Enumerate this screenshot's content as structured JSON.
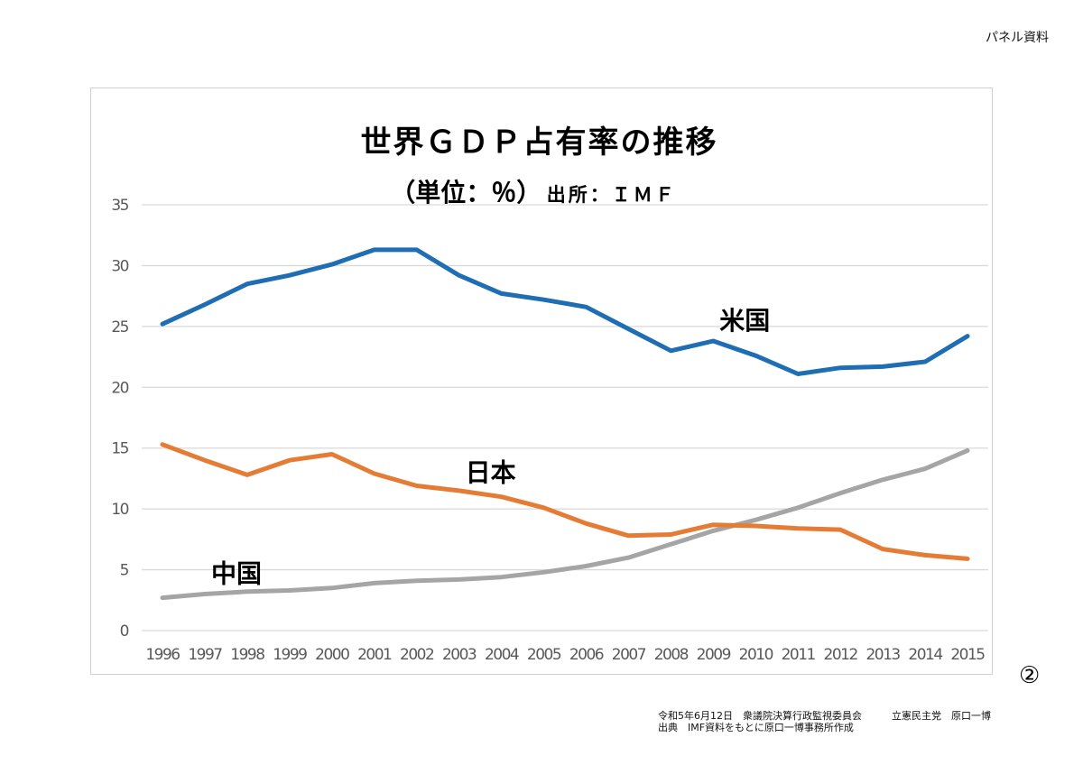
{
  "page": {
    "panel_label": "パネル資料",
    "page_number": "②",
    "footer": {
      "line1": "令和5年6月12日　衆議院決算行政監視委員会　　　立憲民主党　原口一博",
      "line2": "出典　IMF資料をもとに原口一博事務所作成"
    }
  },
  "chart_data": {
    "type": "line",
    "title": "世界ＧＤＰ占有率の推移",
    "subtitle_unit": "（単位：％）",
    "subtitle_source": "出所：ＩＭＦ",
    "xlabel": "",
    "ylabel": "",
    "ylim": [
      0,
      35
    ],
    "yticks": [
      0,
      5,
      10,
      15,
      20,
      25,
      30,
      35
    ],
    "grid": true,
    "legend": "inline labels",
    "x": [
      "1996",
      "1997",
      "1998",
      "1999",
      "2000",
      "2001",
      "2002",
      "2003",
      "2004",
      "2005",
      "2006",
      "2007",
      "2008",
      "2009",
      "2010",
      "2011",
      "2012",
      "2013",
      "2014",
      "2015"
    ],
    "series": [
      {
        "name": "米国",
        "color": "#1f6eb4",
        "values": [
          25.2,
          26.8,
          28.5,
          29.2,
          30.1,
          31.3,
          31.3,
          29.2,
          27.7,
          27.2,
          26.6,
          24.8,
          23.0,
          23.8,
          22.6,
          21.1,
          21.6,
          21.7,
          22.1,
          24.2
        ]
      },
      {
        "name": "日本",
        "color": "#e57c36",
        "values": [
          15.3,
          14.0,
          12.8,
          14.0,
          14.5,
          12.9,
          11.9,
          11.5,
          11.0,
          10.1,
          8.8,
          7.8,
          7.9,
          8.7,
          8.6,
          8.4,
          8.3,
          6.7,
          6.2,
          5.9
        ]
      },
      {
        "name": "中国",
        "color": "#a5a5a5",
        "values": [
          2.7,
          3.0,
          3.2,
          3.3,
          3.5,
          3.9,
          4.1,
          4.2,
          4.4,
          4.8,
          5.3,
          6.0,
          7.1,
          8.2,
          9.1,
          10.1,
          11.3,
          12.4,
          13.3,
          14.8
        ]
      }
    ],
    "annotations": [
      {
        "text": "米国",
        "series": "米国",
        "at_x": "2009",
        "at_y": 25.5
      },
      {
        "text": "日本",
        "series": "日本",
        "at_x": "2003",
        "at_y": 13.0
      },
      {
        "text": "中国",
        "series": "中国",
        "at_x": "1997",
        "at_y": 4.7
      }
    ]
  }
}
